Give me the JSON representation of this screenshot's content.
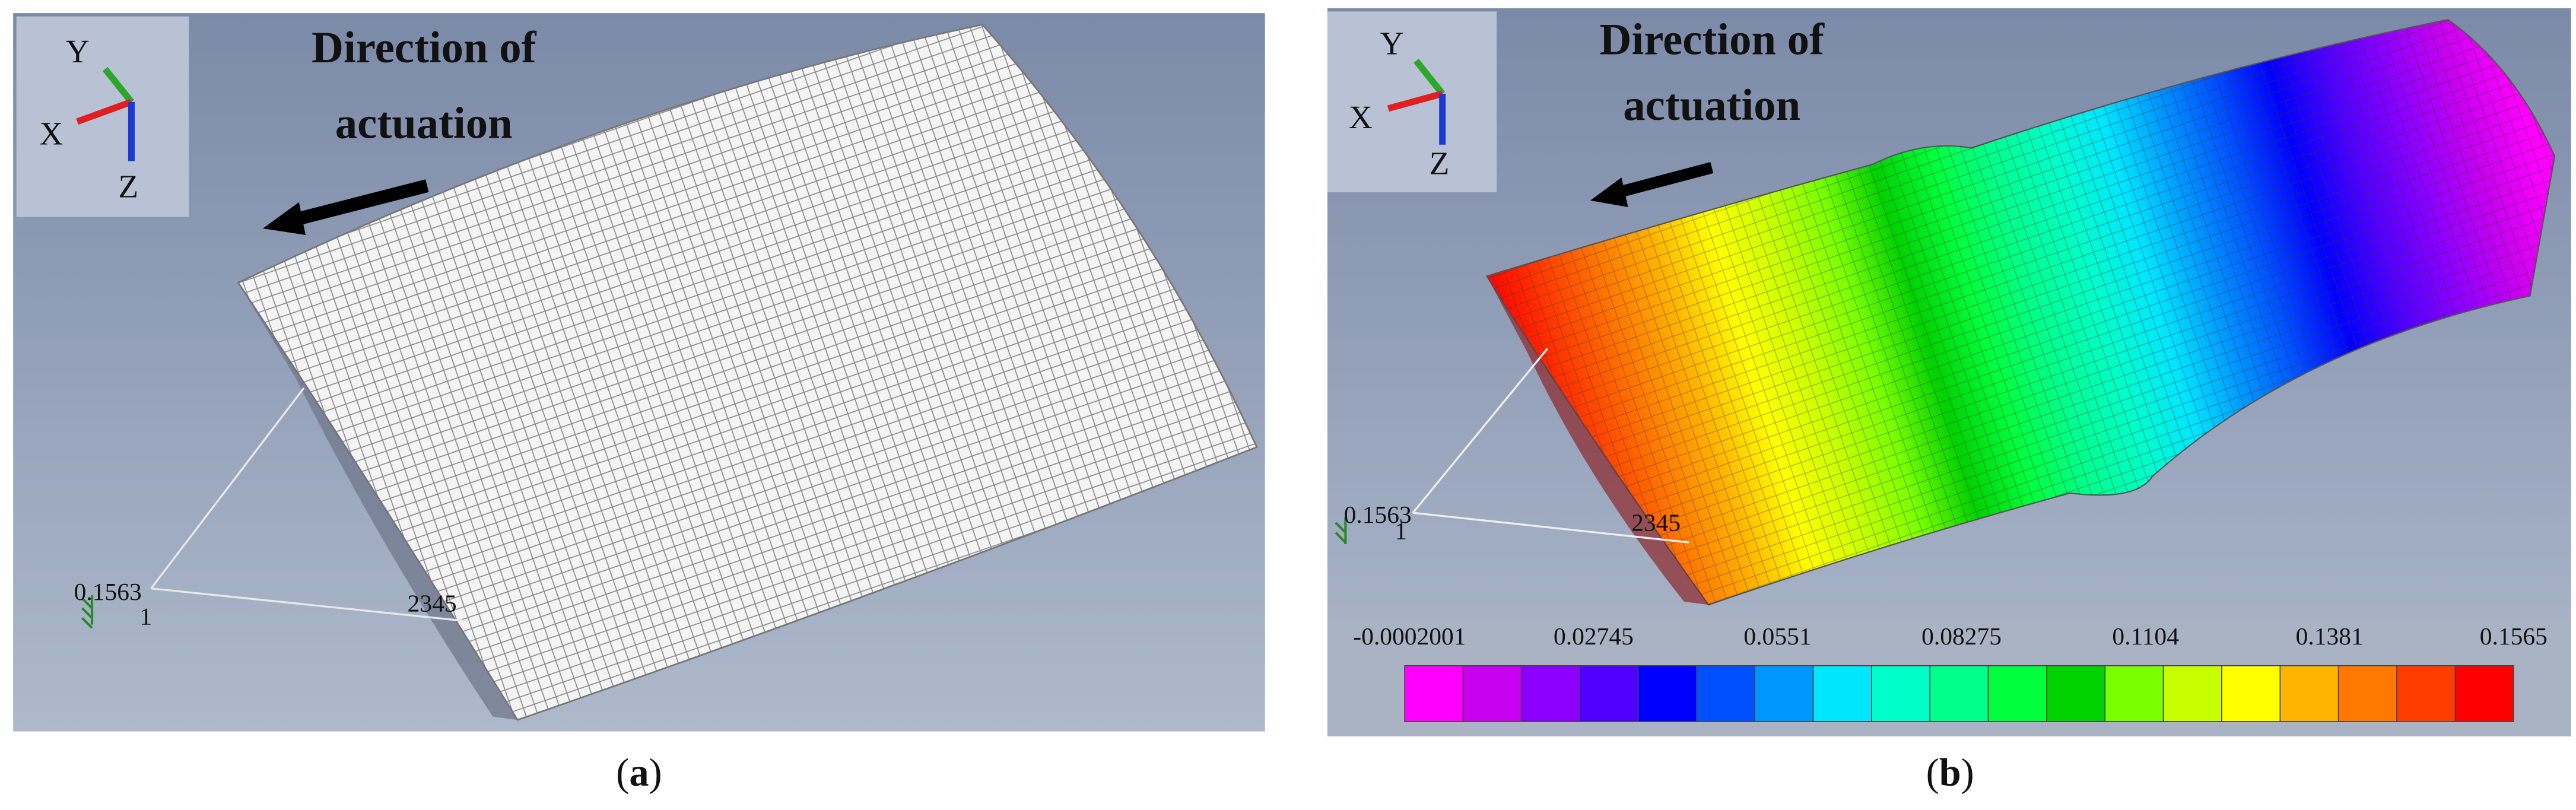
{
  "panels": [
    {
      "caption": [
        "(",
        "a",
        ")"
      ],
      "triad": {
        "y": "Y",
        "x": "X",
        "z": "Z"
      },
      "annotation": [
        "Direction of",
        "actuation"
      ],
      "node_labels": [
        "0.1563",
        "1",
        "2345"
      ]
    },
    {
      "caption": [
        "(",
        "b",
        ")"
      ],
      "triad": {
        "y": "Y",
        "x": "X",
        "z": "Z"
      },
      "annotation": [
        "Direction of",
        "actuation"
      ],
      "node_labels": [
        "0.1563",
        "1",
        "2345"
      ],
      "colorbar": {
        "labels": [
          "-0.0002001",
          "0.02745",
          "0.0551",
          "0.08275",
          "0.1104",
          "0.1381",
          "0.1565"
        ],
        "colors": [
          "#ff00ff",
          "#c800f0",
          "#8c00ff",
          "#5000ff",
          "#0000ff",
          "#0050ff",
          "#0096ff",
          "#00e6ff",
          "#00ffc8",
          "#00ff8c",
          "#00ff3c",
          "#00d200",
          "#78ff00",
          "#c8ff00",
          "#ffff00",
          "#ffb400",
          "#ff7800",
          "#ff3c00",
          "#ff0000"
        ]
      }
    }
  ]
}
